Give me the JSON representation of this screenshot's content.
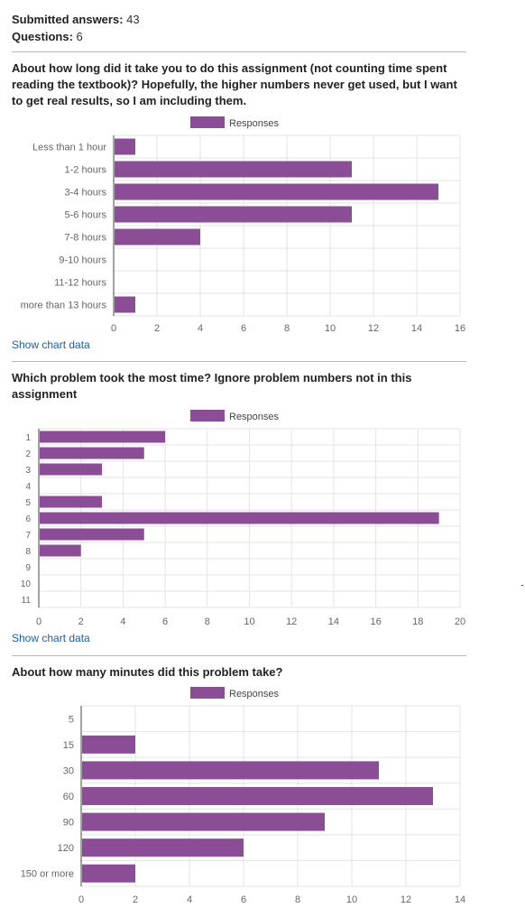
{
  "summary": {
    "answers_label": "Submitted answers:",
    "answers_value": "43",
    "questions_label": "Questions:",
    "questions_value": "6"
  },
  "legend_label": "Responses",
  "show_chart_data": "Show chart data",
  "colors": {
    "bar": "#8a4d96",
    "grid": "#e3e3e3",
    "axis_text": "#666666",
    "link": "#1a5fa0"
  },
  "chart_data": [
    {
      "type": "bar",
      "orientation": "horizontal",
      "title": "About how long did it take you to do this assignment (not counting time spent reading the textbook)? Hopefully, the higher numbers never get used, but I want to get real results, so I am including them.",
      "categories": [
        "Less than 1 hour",
        "1-2 hours",
        "3-4 hours",
        "5-6 hours",
        "7-8 hours",
        "9-10 hours",
        "11-12 hours",
        "more than 13 hours"
      ],
      "series": [
        {
          "name": "Responses",
          "values": [
            1,
            11,
            15,
            11,
            4,
            0,
            0,
            1
          ]
        }
      ],
      "xlim": [
        0,
        16
      ],
      "xticks": [
        0,
        2,
        4,
        6,
        8,
        10,
        12,
        14,
        16
      ],
      "grid": true,
      "legend": "top-center"
    },
    {
      "type": "bar",
      "orientation": "horizontal",
      "title": "Which problem took the most time? Ignore problem numbers not in this assignment",
      "categories": [
        "1",
        "2",
        "3",
        "4",
        "5",
        "6",
        "7",
        "8",
        "9",
        "10",
        "11"
      ],
      "series": [
        {
          "name": "Responses",
          "values": [
            6,
            5,
            3,
            0,
            3,
            19,
            5,
            2,
            0,
            0,
            0
          ]
        }
      ],
      "xlim": [
        0,
        20
      ],
      "xticks": [
        0,
        2,
        4,
        6,
        8,
        10,
        12,
        14,
        16,
        18,
        20
      ],
      "grid": true,
      "legend": "top-center"
    },
    {
      "type": "bar",
      "orientation": "horizontal",
      "title": "About how many minutes did this problem take?",
      "categories": [
        "5",
        "15",
        "30",
        "60",
        "90",
        "120",
        "150 or more"
      ],
      "series": [
        {
          "name": "Responses",
          "values": [
            0,
            2,
            11,
            13,
            9,
            6,
            2
          ]
        }
      ],
      "xlim": [
        0,
        14
      ],
      "xticks": [
        0,
        2,
        4,
        6,
        8,
        10,
        12,
        14
      ],
      "grid": true,
      "legend": "top-center"
    }
  ]
}
